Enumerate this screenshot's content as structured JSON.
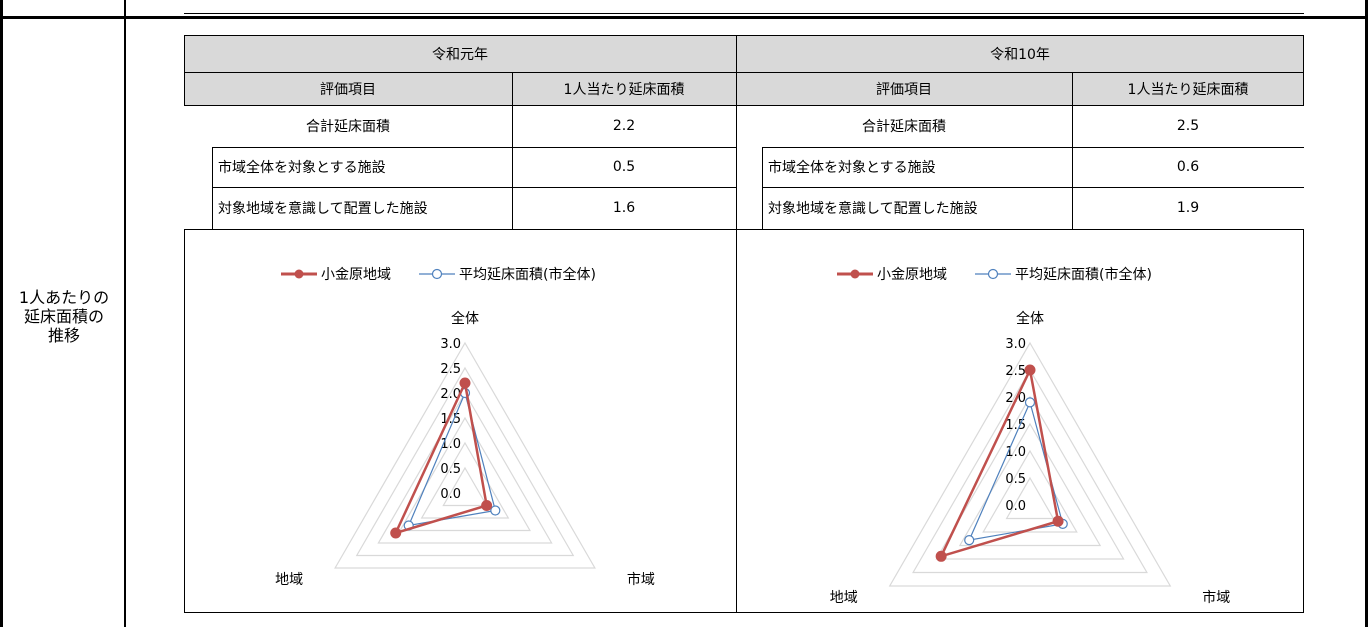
{
  "row_label": "1人あたりの\n延床面積の\n推移",
  "tables": [
    {
      "period": "令和元年",
      "col_item": "評価項目",
      "col_value": "1人当たり延床面積",
      "rows": [
        {
          "label": "合計延床面積",
          "value": "2.2"
        },
        {
          "label": "市域全体を対象とする施設",
          "value": "0.5"
        },
        {
          "label": "対象地域を意識して配置した施設",
          "value": "1.6"
        }
      ]
    },
    {
      "period": "令和10年",
      "col_item": "評価項目",
      "col_value": "1人当たり延床面積",
      "rows": [
        {
          "label": "合計延床面積",
          "value": "2.5"
        },
        {
          "label": "市域全体を対象とする施設",
          "value": "0.6"
        },
        {
          "label": "対象地域を意識して配置した施設",
          "value": "1.9"
        }
      ]
    }
  ],
  "colors": {
    "series_local": "#c0504d",
    "series_avg": "#4f81bd",
    "grid": "#d9d9d9",
    "header_bg": "#d9d9d9"
  },
  "chart_data": [
    {
      "type": "radar",
      "axes": [
        "全体",
        "市域",
        "地域"
      ],
      "ticks": [
        "3.0",
        "2.5",
        "2.0",
        "1.5",
        "1.0",
        "0.5",
        "0.0"
      ],
      "range": [
        0,
        3
      ],
      "legend_position": "top",
      "series": [
        {
          "name": "小金原地域",
          "values": [
            2.2,
            0.5,
            1.6
          ]
        },
        {
          "name": "平均延床面積(市全体)",
          "values": [
            2.0,
            0.7,
            1.3
          ]
        }
      ]
    },
    {
      "type": "radar",
      "axes": [
        "全体",
        "市域",
        "地域"
      ],
      "ticks": [
        "3.0",
        "2.5",
        "2.0",
        "1.5",
        "1.0",
        "0.5",
        "0.0"
      ],
      "range": [
        0,
        3
      ],
      "legend_position": "top",
      "series": [
        {
          "name": "小金原地域",
          "values": [
            2.5,
            0.6,
            1.9
          ]
        },
        {
          "name": "平均延床面積(市全体)",
          "values": [
            1.9,
            0.7,
            1.3
          ]
        }
      ]
    }
  ]
}
